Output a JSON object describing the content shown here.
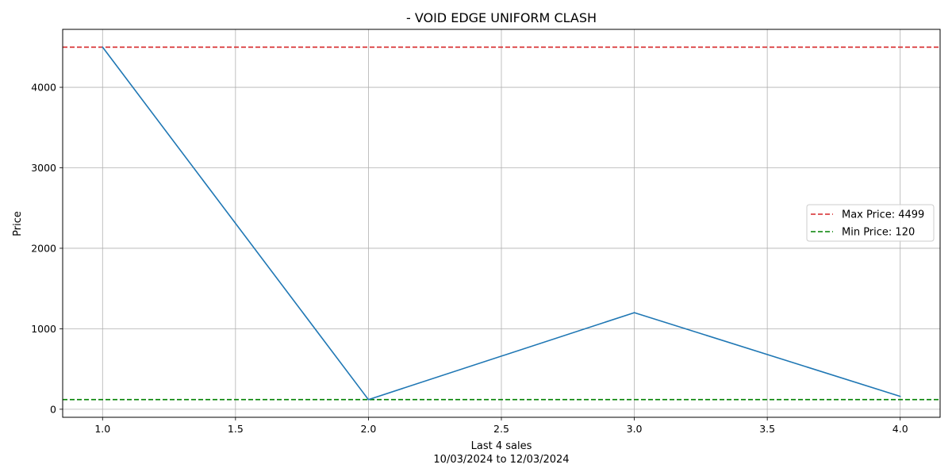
{
  "chart_data": {
    "type": "line",
    "title": "- VOID EDGE UNIFORM CLASH",
    "xlabel": "Last 4 sales",
    "xlabel_sub": "10/03/2024 to 12/03/2024",
    "ylabel": "Price",
    "xlim": [
      0.85,
      4.15
    ],
    "ylim": [
      -100,
      4720
    ],
    "xticks": [
      1.0,
      1.5,
      2.0,
      2.5,
      3.0,
      3.5,
      4.0
    ],
    "xtick_labels": [
      "1.0",
      "1.5",
      "2.0",
      "2.5",
      "3.0",
      "3.5",
      "4.0"
    ],
    "yticks": [
      0,
      1000,
      2000,
      3000,
      4000
    ],
    "ytick_labels": [
      "0",
      "1000",
      "2000",
      "3000",
      "4000"
    ],
    "grid": true,
    "legend_position": "center-right",
    "series": [
      {
        "x": [
          1,
          2,
          3,
          4
        ],
        "values": [
          4499,
          120,
          1200,
          160
        ],
        "color": "#1f77b4"
      }
    ],
    "reference_lines": [
      {
        "label": "Max Price: 4499",
        "value": 4499,
        "color": "#d62728",
        "style": "dashed"
      },
      {
        "label": "Min Price: 120",
        "value": 120,
        "color": "#008000",
        "style": "dashed"
      }
    ]
  }
}
